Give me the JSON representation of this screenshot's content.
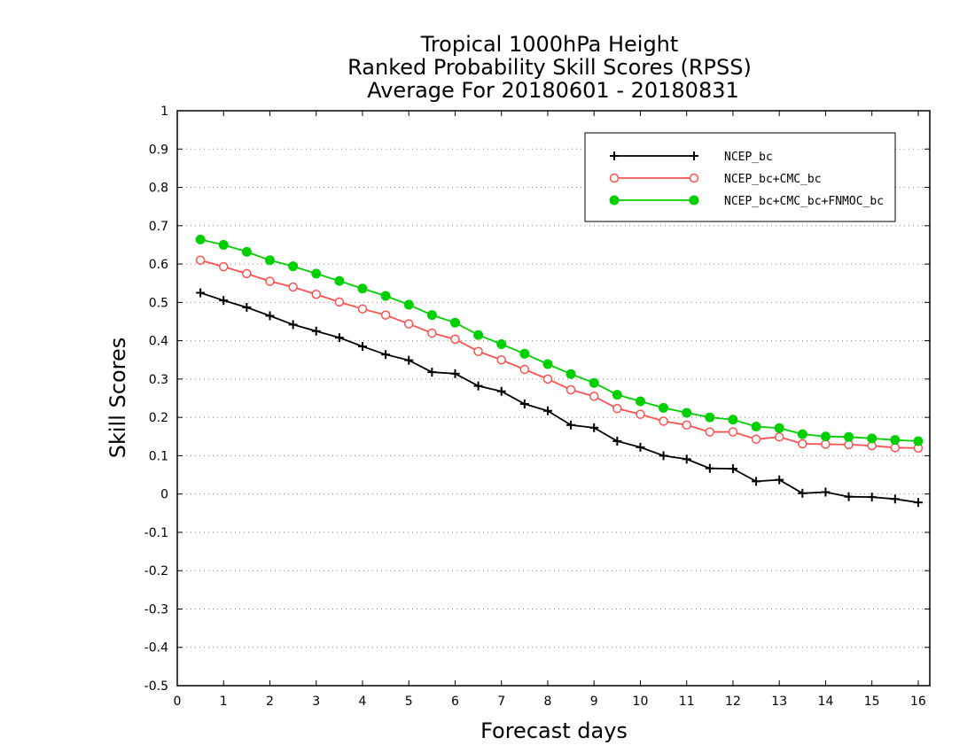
{
  "chart_data": {
    "type": "line",
    "title": [
      "Tropical 1000hPa Height",
      "Ranked Probability Skill Scores (RPSS)",
      "Average For 20180601 - 20180831"
    ],
    "xlabel": "Forecast days",
    "ylabel": "Skill Scores",
    "xlim": [
      0,
      16.25
    ],
    "ylim": [
      -0.5,
      1
    ],
    "xticks": [
      "0",
      "1",
      "2",
      "3",
      "4",
      "5",
      "6",
      "7",
      "8",
      "9",
      "10",
      "11",
      "12",
      "13",
      "14",
      "15",
      "16"
    ],
    "yticks": [
      "1",
      "0.9",
      "0.8",
      "0.7",
      "0.6",
      "0.5",
      "0.4",
      "0.3",
      "0.2",
      "0.1",
      "0",
      "-0.1",
      "-0.2",
      "-0.3",
      "-0.4",
      "-0.5"
    ],
    "grid": "horizontal-dotted",
    "legend_position": "top-right",
    "x": [
      0.5,
      1,
      1.5,
      2,
      2.5,
      3,
      3.5,
      4,
      4.5,
      5,
      5.5,
      6,
      6.5,
      7,
      7.5,
      8,
      8.5,
      9,
      9.5,
      10,
      10.5,
      11,
      11.5,
      12,
      12.5,
      13,
      13.5,
      14,
      14.5,
      15,
      15.5,
      16
    ],
    "series": [
      {
        "name": "NCEP_bc",
        "color": "#000000",
        "marker": "plus",
        "values": [
          0.525,
          0.505,
          0.487,
          0.465,
          0.442,
          0.425,
          0.408,
          0.385,
          0.364,
          0.349,
          0.318,
          0.314,
          0.282,
          0.268,
          0.235,
          0.217,
          0.18,
          0.173,
          0.138,
          0.122,
          0.1,
          0.091,
          0.067,
          0.066,
          0.033,
          0.037,
          0.002,
          0.005,
          -0.007,
          -0.008,
          -0.013,
          -0.022
        ]
      },
      {
        "name": "NCEP_bc+CMC_bc",
        "color": "#ff5050",
        "marker": "open-circle",
        "values": [
          0.61,
          0.593,
          0.575,
          0.555,
          0.54,
          0.521,
          0.501,
          0.483,
          0.467,
          0.444,
          0.42,
          0.404,
          0.372,
          0.35,
          0.325,
          0.3,
          0.272,
          0.255,
          0.223,
          0.208,
          0.19,
          0.18,
          0.162,
          0.162,
          0.143,
          0.149,
          0.131,
          0.13,
          0.129,
          0.126,
          0.121,
          0.12
        ]
      },
      {
        "name": "NCEP_bc+CMC_bc+FNMOC_bc",
        "color": "#00d000",
        "marker": "filled-circle",
        "values": [
          0.664,
          0.65,
          0.632,
          0.61,
          0.594,
          0.575,
          0.556,
          0.536,
          0.517,
          0.494,
          0.467,
          0.447,
          0.415,
          0.391,
          0.366,
          0.339,
          0.313,
          0.29,
          0.259,
          0.242,
          0.225,
          0.212,
          0.2,
          0.194,
          0.176,
          0.172,
          0.156,
          0.15,
          0.149,
          0.145,
          0.141,
          0.138
        ]
      }
    ]
  }
}
